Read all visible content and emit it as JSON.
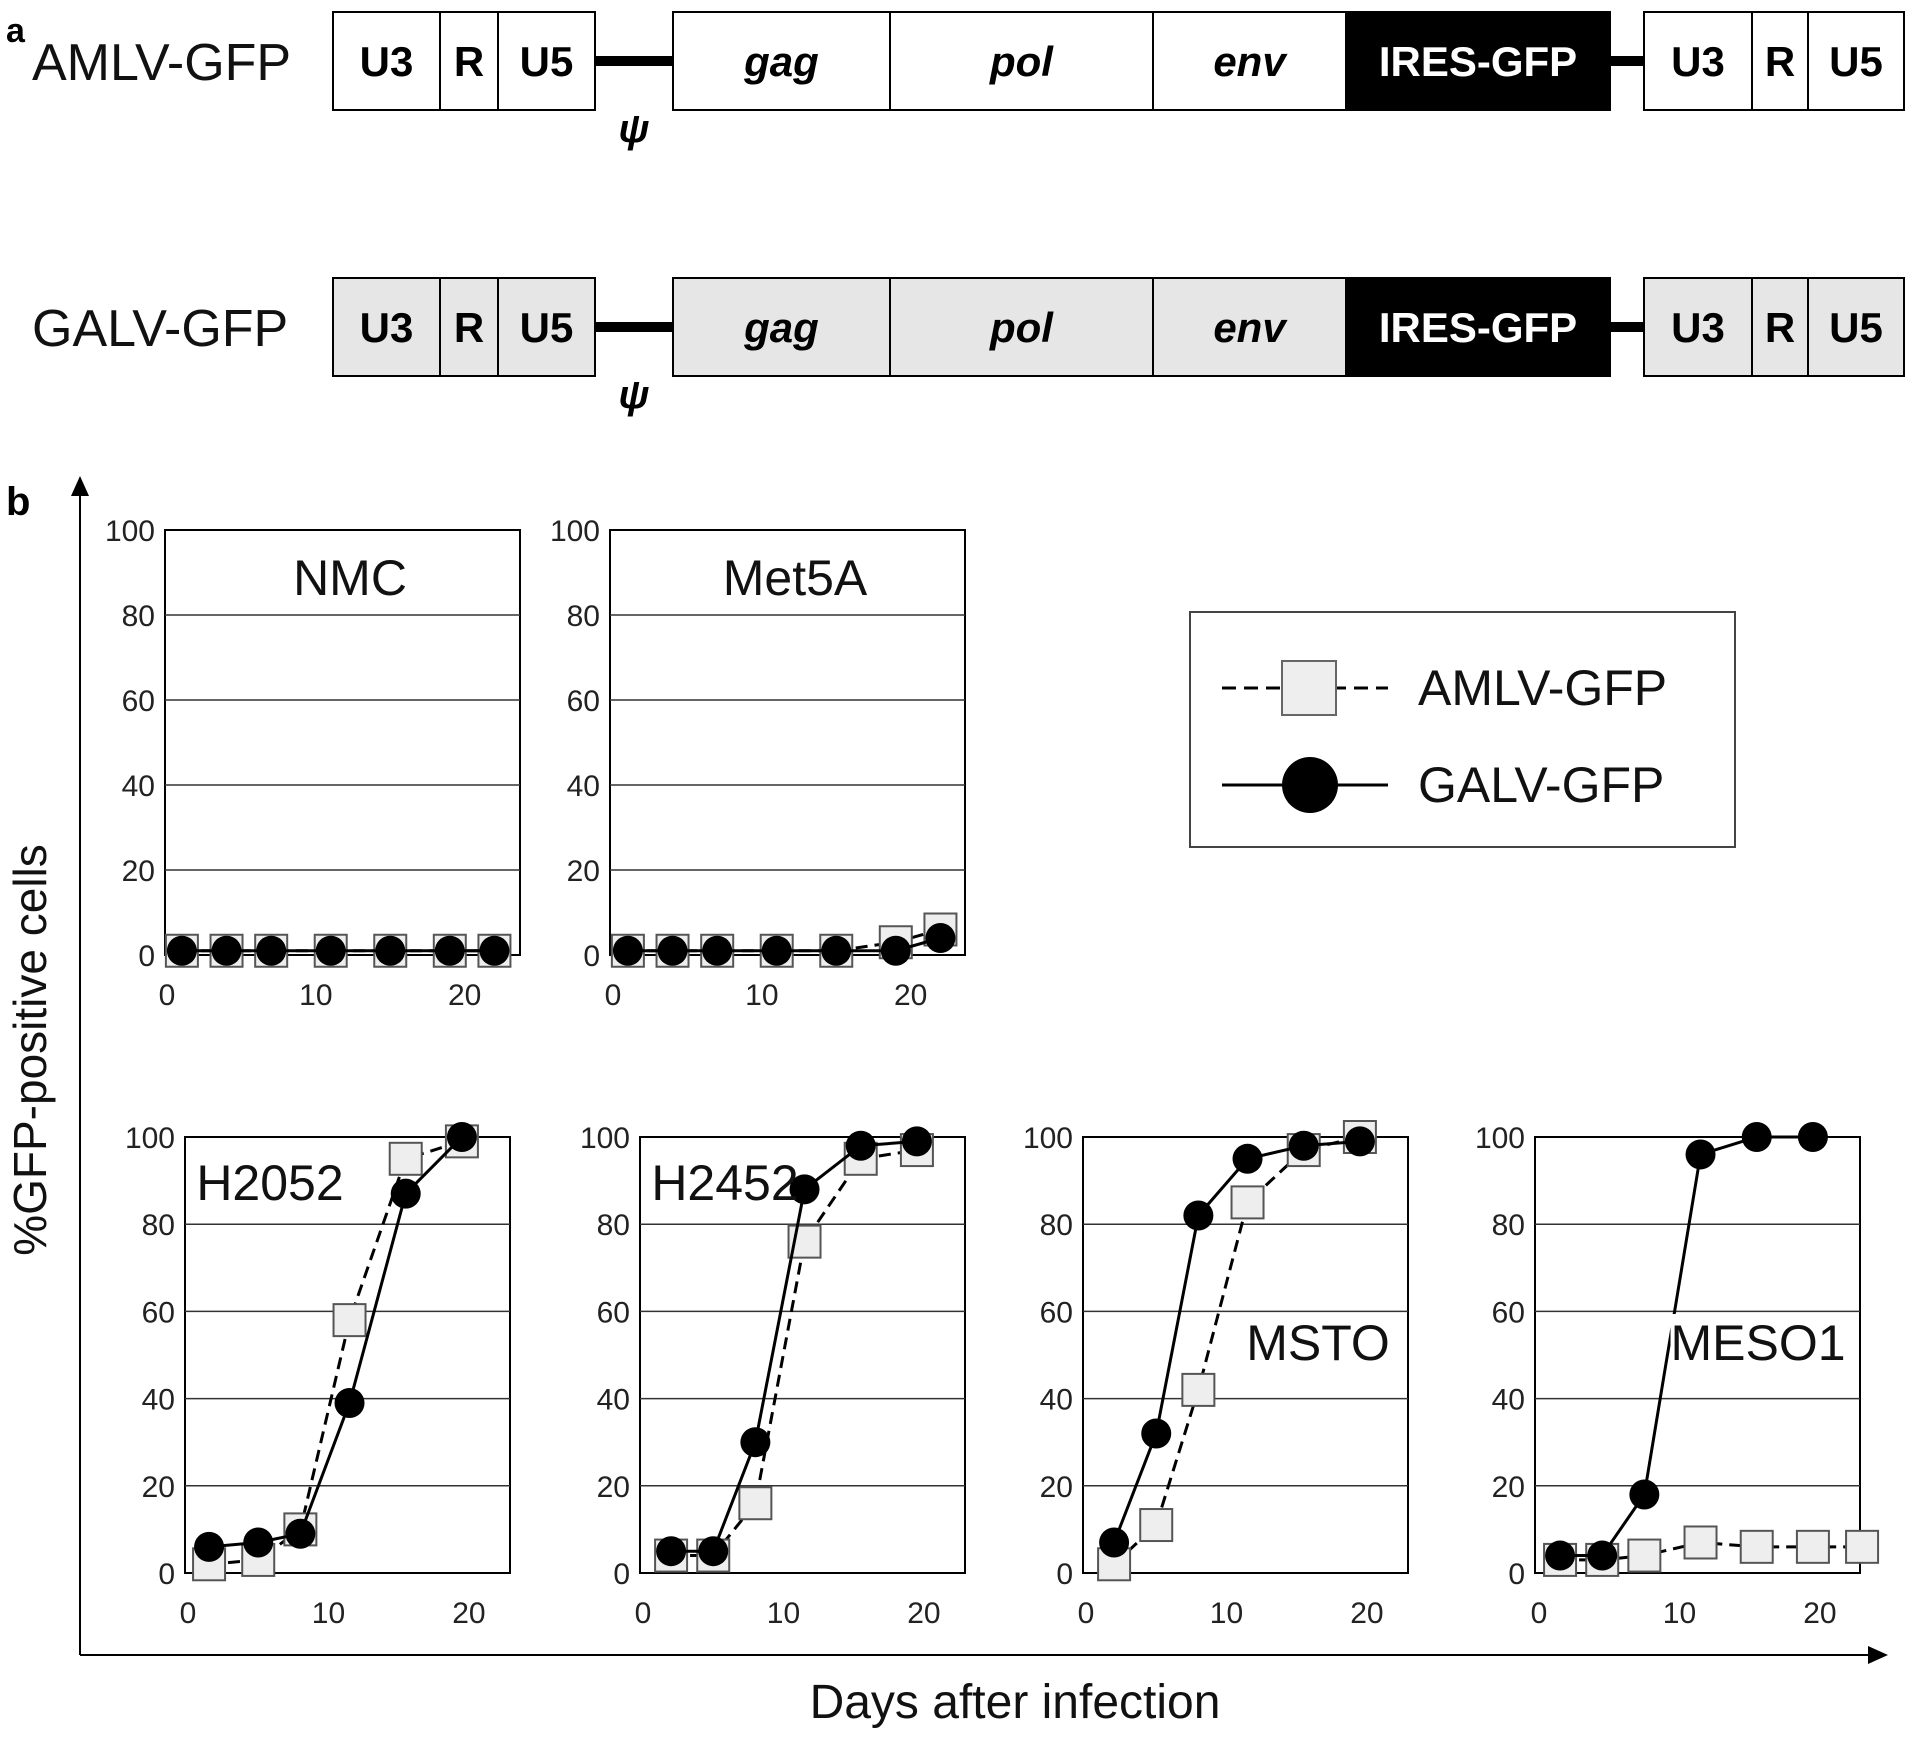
{
  "panel_a": {
    "label": "a",
    "constructs": [
      {
        "name": "AMLV-GFP",
        "fill": "#ffffff",
        "segments": {
          "ltr5": [
            "U3",
            "R",
            "U5"
          ],
          "genes": [
            "gag",
            "pol",
            "env"
          ],
          "reporter": "IRES-GFP",
          "ltr3": [
            "U3",
            "R",
            "U5"
          ]
        },
        "psi": "ψ"
      },
      {
        "name": "GALV-GFP",
        "fill": "#e6e6e6",
        "segments": {
          "ltr5": [
            "U3",
            "R",
            "U5"
          ],
          "genes": [
            "gag",
            "pol",
            "env"
          ],
          "reporter": "IRES-GFP",
          "ltr3": [
            "U3",
            "R",
            "U5"
          ]
        },
        "psi": "ψ"
      }
    ]
  },
  "panel_b": {
    "label": "b",
    "ylabel": "%GFP-positive cells",
    "xlabel": "Days after infection",
    "legend": {
      "placement": "top-right",
      "entries": [
        {
          "label": "AMLV-GFP",
          "marker": "square",
          "line": "dashed",
          "color": "#eeeeee"
        },
        {
          "label": "GALV-GFP",
          "marker": "circle",
          "line": "solid",
          "color": "#000000"
        }
      ]
    }
  },
  "chart_data": [
    {
      "type": "line",
      "title": "NMC",
      "ylim": [
        0,
        100
      ],
      "yticks": [
        0,
        20,
        40,
        60,
        80,
        100
      ],
      "xticks": [
        0,
        10,
        20
      ],
      "series": [
        {
          "name": "AMLV-GFP",
          "x": [
            1,
            4,
            7,
            11,
            15,
            19,
            22
          ],
          "y": [
            1,
            1,
            1,
            1,
            1,
            1,
            1
          ]
        },
        {
          "name": "GALV-GFP",
          "x": [
            1,
            4,
            7,
            11,
            15,
            19,
            22
          ],
          "y": [
            1,
            1,
            1,
            1,
            1,
            1,
            1
          ]
        }
      ]
    },
    {
      "type": "line",
      "title": "Met5A",
      "ylim": [
        0,
        100
      ],
      "yticks": [
        0,
        20,
        40,
        60,
        80,
        100
      ],
      "xticks": [
        0,
        10,
        20
      ],
      "series": [
        {
          "name": "AMLV-GFP",
          "x": [
            1,
            4,
            7,
            11,
            15,
            19,
            22
          ],
          "y": [
            1,
            1,
            1,
            1,
            1,
            3,
            6
          ]
        },
        {
          "name": "GALV-GFP",
          "x": [
            1,
            4,
            7,
            11,
            15,
            19,
            22
          ],
          "y": [
            1,
            1,
            1,
            1,
            1,
            1,
            4
          ]
        }
      ]
    },
    {
      "type": "line",
      "title": "H2052",
      "ylim": [
        0,
        100
      ],
      "yticks": [
        0,
        20,
        40,
        60,
        80,
        100
      ],
      "xticks": [
        0,
        10,
        20
      ],
      "series": [
        {
          "name": "AMLV-GFP",
          "x": [
            1.5,
            5,
            8,
            11.5,
            15.5,
            19.5
          ],
          "y": [
            2,
            3,
            10,
            58,
            95,
            99
          ]
        },
        {
          "name": "GALV-GFP",
          "x": [
            1.5,
            5,
            8,
            11.5,
            15.5,
            19.5
          ],
          "y": [
            6,
            7,
            9,
            39,
            87,
            100
          ]
        }
      ]
    },
    {
      "type": "line",
      "title": "H2452",
      "ylim": [
        0,
        100
      ],
      "yticks": [
        0,
        20,
        40,
        60,
        80,
        100
      ],
      "xticks": [
        0,
        10,
        20
      ],
      "series": [
        {
          "name": "AMLV-GFP",
          "x": [
            2,
            5,
            8,
            11.5,
            15.5,
            19.5
          ],
          "y": [
            4,
            4,
            16,
            76,
            95,
            97
          ]
        },
        {
          "name": "GALV-GFP",
          "x": [
            2,
            5,
            8,
            11.5,
            15.5,
            19.5
          ],
          "y": [
            5,
            5,
            30,
            88,
            98,
            99
          ]
        }
      ]
    },
    {
      "type": "line",
      "title": "MSTO",
      "ylim": [
        0,
        100
      ],
      "yticks": [
        0,
        20,
        40,
        60,
        80,
        100
      ],
      "xticks": [
        0,
        10,
        20
      ],
      "series": [
        {
          "name": "AMLV-GFP",
          "x": [
            2,
            5,
            8,
            11.5,
            15.5,
            19.5
          ],
          "y": [
            2,
            11,
            42,
            85,
            97,
            100
          ]
        },
        {
          "name": "GALV-GFP",
          "x": [
            2,
            5,
            8,
            11.5,
            15.5,
            19.5
          ],
          "y": [
            7,
            32,
            82,
            95,
            98,
            99
          ]
        }
      ]
    },
    {
      "type": "line",
      "title": "MESO1",
      "ylim": [
        0,
        100
      ],
      "yticks": [
        0,
        20,
        40,
        60,
        80,
        100
      ],
      "xticks": [
        0,
        10,
        20
      ],
      "series": [
        {
          "name": "AMLV-GFP",
          "x": [
            1.5,
            4.5,
            7.5,
            11.5,
            15.5,
            19.5,
            23
          ],
          "y": [
            3,
            3,
            4,
            7,
            6,
            6,
            6
          ]
        },
        {
          "name": "GALV-GFP",
          "x": [
            1.5,
            4.5,
            7.5,
            11.5,
            15.5,
            19.5
          ],
          "y": [
            4,
            4,
            18,
            96,
            100,
            100
          ]
        }
      ]
    }
  ]
}
